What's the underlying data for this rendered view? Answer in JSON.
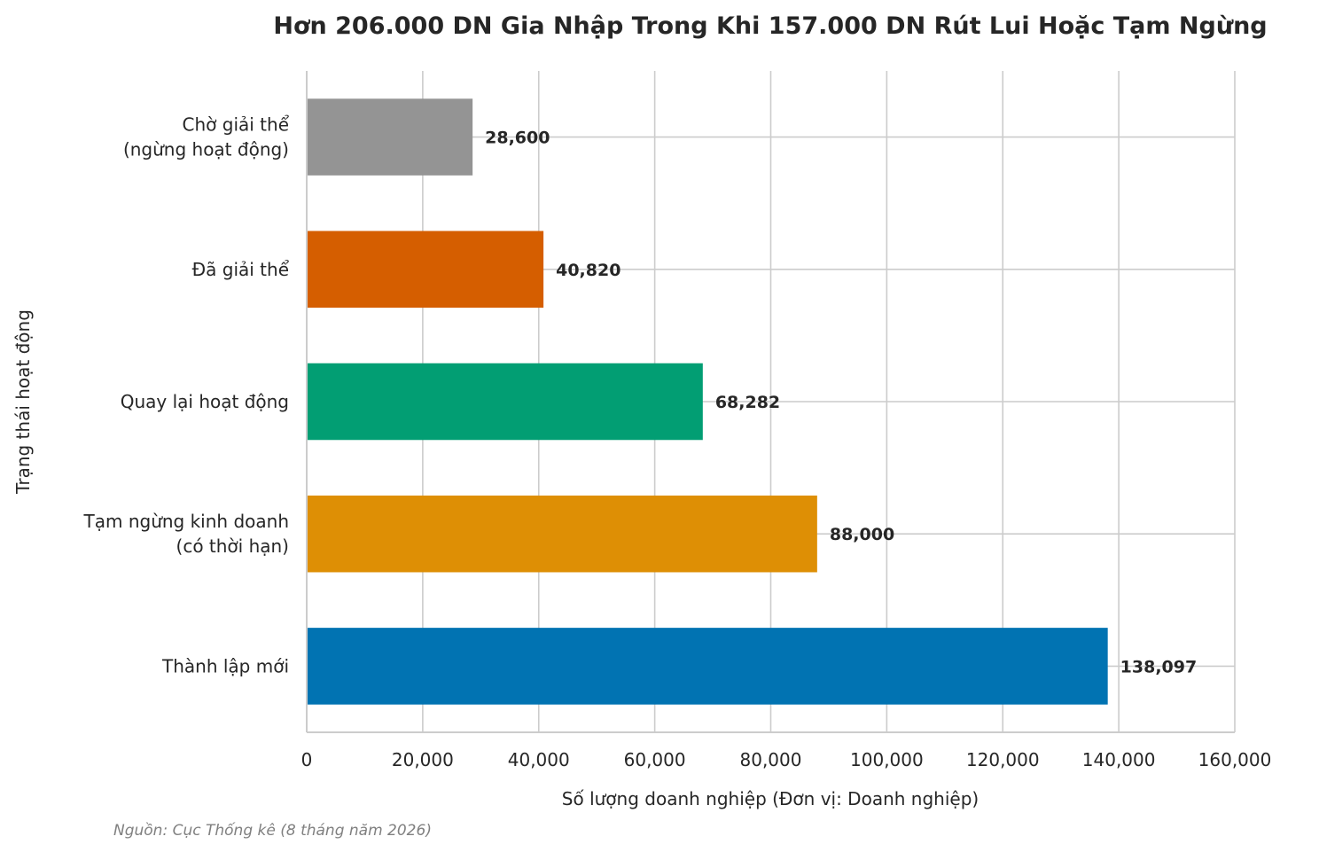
{
  "chart_data": {
    "type": "bar",
    "orientation": "horizontal",
    "title": "Hơn 206.000 DN Gia Nhập Trong Khi 157.000 DN Rút Lui Hoặc Tạm Ngừng",
    "xlabel": "Số lượng doanh nghiệp (Đơn vị: Doanh nghiệp)",
    "ylabel": "Trạng thái hoạt động",
    "xlim": [
      0,
      160000
    ],
    "xticks": [
      0,
      20000,
      40000,
      60000,
      80000,
      100000,
      120000,
      140000,
      160000
    ],
    "xtick_labels": [
      "0",
      "20,000",
      "40,000",
      "60,000",
      "80,000",
      "100,000",
      "120,000",
      "140,000",
      "160,000"
    ],
    "grid": true,
    "categories": [
      [
        "Chờ giải thể",
        "(ngừng hoạt động)"
      ],
      [
        "Đã giải thể"
      ],
      [
        "Quay lại hoạt động"
      ],
      [
        "Tạm ngừng kinh doanh",
        "(có thời hạn)"
      ],
      [
        "Thành lập mới"
      ]
    ],
    "values": [
      28600,
      40820,
      68282,
      88000,
      138097
    ],
    "value_labels": [
      "28,600",
      "40,820",
      "68,282",
      "88,000",
      "138,097"
    ],
    "colors": [
      "#949494",
      "#d55e00",
      "#029e73",
      "#de8f05",
      "#0173b2"
    ],
    "source": "Nguồn: Cục Thống kê (8 tháng năm 2026)"
  }
}
